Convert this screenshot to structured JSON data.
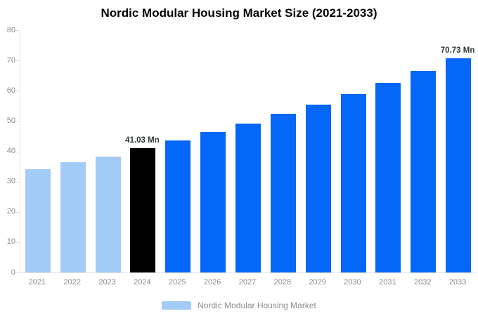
{
  "chart_data": {
    "type": "bar",
    "title": "Nordic Modular Housing Market Size (2021-2033)",
    "categories": [
      "2021",
      "2022",
      "2023",
      "2024",
      "2025",
      "2026",
      "2027",
      "2028",
      "2029",
      "2030",
      "2031",
      "2032",
      "2033"
    ],
    "values": [
      34.0,
      36.3,
      38.3,
      41.03,
      43.6,
      46.3,
      49.2,
      52.3,
      55.5,
      59.0,
      62.7,
      66.6,
      70.73
    ],
    "xlabel": "",
    "ylabel": "",
    "ylim": [
      0,
      80
    ],
    "yticks": [
      0,
      10,
      20,
      30,
      40,
      50,
      60,
      70,
      80
    ],
    "grid": false,
    "legend": {
      "position": "bottom",
      "label": "Nordic Modular Housing Market",
      "swatch_color": "#a3cbf7"
    },
    "bar_colors": [
      "#a3cbf7",
      "#a3cbf7",
      "#a3cbf7",
      "#000000",
      "#0567f7",
      "#0567f7",
      "#0567f7",
      "#0567f7",
      "#0567f7",
      "#0567f7",
      "#0567f7",
      "#0567f7",
      "#0567f7"
    ],
    "data_labels": [
      {
        "index": 3,
        "text": "41.03 Mn"
      },
      {
        "index": 12,
        "text": "70.73 Mn"
      }
    ],
    "colors": {
      "historical_bar": "#a3cbf7",
      "highlight_bar": "#000000",
      "forecast_bar": "#0567f7",
      "axis_line": "#e3e3e3",
      "tick_label": "#8c8c8c",
      "data_label": "#30383a",
      "title": "#000000"
    }
  }
}
